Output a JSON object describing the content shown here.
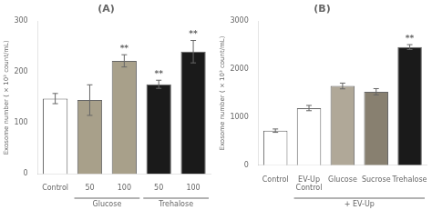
{
  "chart_data": [
    {
      "type": "bar",
      "title": "(A)",
      "ylabel": "Exosome number ( × 10³ count/mL)",
      "categories": [
        "Control",
        "50",
        "100",
        "50",
        "100"
      ],
      "values": [
        148,
        145,
        222,
        176,
        240
      ],
      "errors": [
        10,
        30,
        12,
        8,
        22
      ],
      "colors": [
        "#ffffff",
        "#a8a08a",
        "#a8a08a",
        "#1a1a1a",
        "#1a1a1a"
      ],
      "significance": [
        null,
        null,
        "**",
        "**",
        "**"
      ],
      "groups": [
        null,
        "Glucose",
        "Glucose",
        "Trehalose",
        "Trehalose"
      ],
      "ylim": [
        0,
        300
      ],
      "yticks": [
        0,
        100,
        200,
        300
      ],
      "grid": false
    },
    {
      "type": "bar",
      "title": "(B)",
      "ylabel": "Exosome number ( × 10³ count/mL)",
      "categories": [
        "Control",
        "EV-Up\nControl",
        "Glucose",
        "Sucrose",
        "Trehalose"
      ],
      "values": [
        720,
        1190,
        1650,
        1530,
        2460
      ],
      "errors": [
        35,
        55,
        60,
        65,
        50
      ],
      "colors": [
        "#ffffff",
        "#ffffff",
        "#b0a898",
        "#888070",
        "#1a1a1a"
      ],
      "significance": [
        null,
        null,
        null,
        null,
        "**"
      ],
      "groups": [
        null,
        "+ EV-Up",
        "+ EV-Up",
        "+ EV-Up",
        "+ EV-Up"
      ],
      "ylim": [
        0,
        3000
      ],
      "yticks": [
        0,
        1000,
        2000,
        3000
      ],
      "grid": false
    }
  ]
}
